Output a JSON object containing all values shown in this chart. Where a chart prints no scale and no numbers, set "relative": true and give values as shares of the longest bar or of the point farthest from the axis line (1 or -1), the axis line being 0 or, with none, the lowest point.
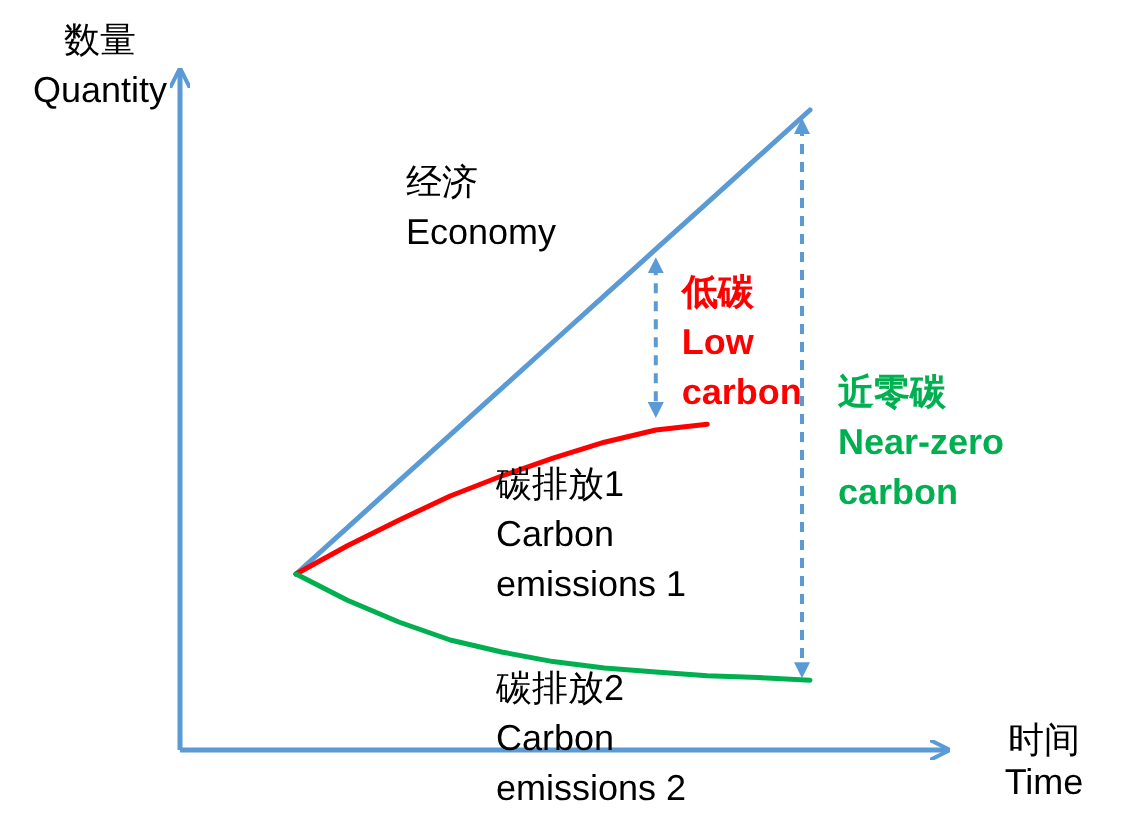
{
  "chart_data": {
    "type": "line",
    "relative": true,
    "grid": false,
    "marker": "none",
    "xlabel": "时间\nTime",
    "ylabel": "数量\nQuantity",
    "categories": [
      null,
      null,
      null,
      null,
      null,
      null,
      null,
      null,
      null,
      null,
      null
    ],
    "series": [
      {
        "name": "经济\nEconomy",
        "color": "#5b9bd5",
        "values": [
          0.275,
          0.3475,
          0.42,
          0.4925,
          0.565,
          0.6375,
          0.71,
          0.7825,
          0.855,
          0.9275,
          1
        ]
      },
      {
        "name": "碳排放1\nCarbon\nemissions 1",
        "color": "#ff0000",
        "values": [
          0.275,
          0.319,
          0.359,
          0.397,
          0.428,
          0.456,
          0.481,
          0.5,
          0.509,
          null,
          null
        ]
      },
      {
        "name": "碳排放2\nCarbon\nemissions 2",
        "color": "#00b050",
        "values": [
          0.275,
          0.234,
          0.2,
          0.172,
          0.153,
          0.138,
          0.128,
          0.122,
          0.116,
          0.113,
          0.109
        ]
      }
    ],
    "annotations": [
      "低碳\nLow\ncarbon",
      "近零碳\nNear-zero\ncarbon"
    ]
  }
}
